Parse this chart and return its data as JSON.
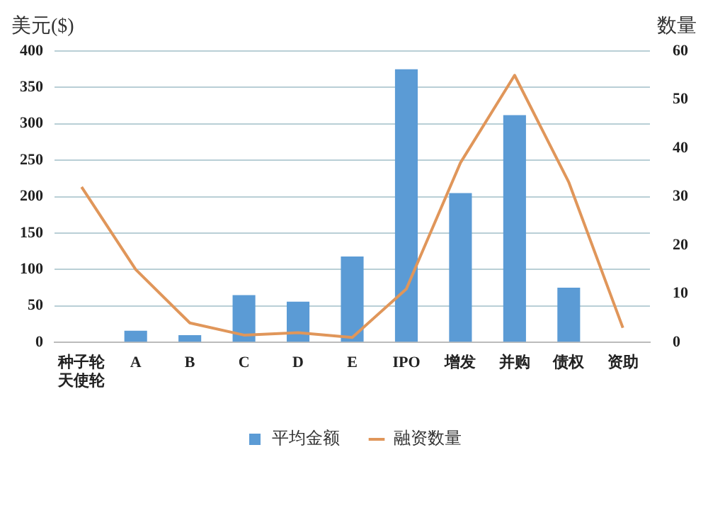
{
  "chart_data": {
    "type": "bar",
    "ylabel": "美元($)",
    "y2label": "数量",
    "categories": [
      "种子轮天使轮",
      "A",
      "B",
      "C",
      "D",
      "E",
      "IPO",
      "增发",
      "并购",
      "债权",
      "资助"
    ],
    "series": [
      {
        "name": "平均金额",
        "color": "#5b9bd5",
        "values": [
          0,
          16,
          10,
          65,
          56,
          118,
          375,
          205,
          312,
          75,
          0
        ]
      },
      {
        "name": "融资数量",
        "type": "line",
        "axis": "y2",
        "color": "#e0965a",
        "marker": "none",
        "values": [
          32,
          15,
          4,
          1.5,
          2,
          1,
          11,
          37,
          55,
          33,
          3
        ]
      }
    ],
    "ylim": [
      0,
      400
    ],
    "yticks": [
      0,
      50,
      100,
      150,
      200,
      250,
      300,
      350,
      400
    ],
    "y2lim": [
      0,
      60
    ],
    "y2ticks": [
      0,
      10,
      20,
      30,
      40,
      50,
      60
    ],
    "grid": "y",
    "legend": "bottom"
  }
}
